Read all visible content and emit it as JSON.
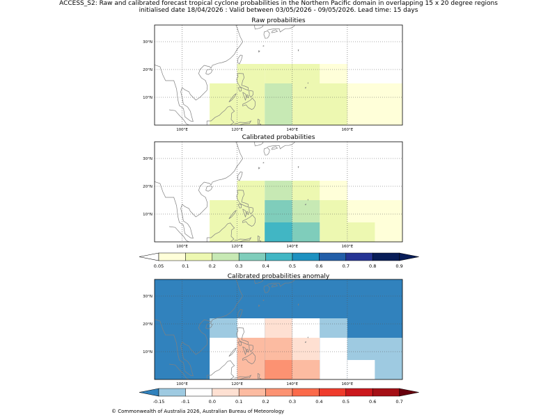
{
  "header": {
    "line1": "ACCESS_S2: Raw and calibrated forecast tropical cyclone probabilities in the Northern Pacific domain in overlapping 15 x 20 degree regions",
    "line2": "initialised date 18/04/2026 :  Valid between 03/05/2026 - 09/05/2026. Lead time: 15 days"
  },
  "footer": "© Commonwealth of Australia 2026, Australian Bureau of Meteorology",
  "axes": {
    "lon_ticks": [
      "100°E",
      "120°E",
      "140°E",
      "160°E"
    ],
    "lat_ticks": [
      "30°N",
      "20°N",
      "10°N"
    ]
  },
  "colors": {
    "prob": [
      "#ffffd9",
      "#edf8b1",
      "#c7e9b4",
      "#7fcdbb",
      "#41b6c4",
      "#1d91c0",
      "#225ea8",
      "#253494",
      "#081d58"
    ],
    "prob_under": "#ffffff",
    "prob_over": "#081d58",
    "anom": [
      "#9ecae1",
      "#ffffff",
      "#fee0d2",
      "#fcbba1",
      "#fc9272",
      "#fb6a4a",
      "#ef3b2c",
      "#cb181d",
      "#a50f15"
    ],
    "anom_under": "#3182bd",
    "anom_over": "#67000d",
    "anom_background": "#3182bd",
    "coast": "#808080",
    "grid": "#555555"
  },
  "panels": [
    {
      "id": "raw",
      "title": "Raw probabilities",
      "cells": [
        {
          "lon": [
            110,
            120
          ],
          "lat": [
            0,
            15
          ],
          "level": 1
        },
        {
          "lon": [
            120,
            130
          ],
          "lat": [
            15,
            22
          ],
          "level": 1
        },
        {
          "lon": [
            130,
            150
          ],
          "lat": [
            15,
            22
          ],
          "level": 1
        },
        {
          "lon": [
            150,
            160
          ],
          "lat": [
            15,
            22
          ],
          "level": 0
        },
        {
          "lon": [
            120,
            130
          ],
          "lat": [
            0,
            15
          ],
          "level": 1
        },
        {
          "lon": [
            130,
            140
          ],
          "lat": [
            0,
            15
          ],
          "level": 2
        },
        {
          "lon": [
            140,
            160
          ],
          "lat": [
            0,
            15
          ],
          "level": 1
        },
        {
          "lon": [
            160,
            180
          ],
          "lat": [
            0,
            15
          ],
          "level": 0
        }
      ]
    },
    {
      "id": "calibrated",
      "title": "Calibrated probabilities",
      "cells": [
        {
          "lon": [
            110,
            120
          ],
          "lat": [
            0,
            15
          ],
          "level": 1
        },
        {
          "lon": [
            120,
            130
          ],
          "lat": [
            15,
            22
          ],
          "level": 1
        },
        {
          "lon": [
            130,
            140
          ],
          "lat": [
            15,
            22
          ],
          "level": 2
        },
        {
          "lon": [
            140,
            150
          ],
          "lat": [
            15,
            22
          ],
          "level": 1
        },
        {
          "lon": [
            150,
            160
          ],
          "lat": [
            15,
            22
          ],
          "level": 0
        },
        {
          "lon": [
            120,
            130
          ],
          "lat": [
            0,
            15
          ],
          "level": 1
        },
        {
          "lon": [
            130,
            140
          ],
          "lat": [
            0,
            15
          ],
          "level": 3
        },
        {
          "lon": [
            140,
            150
          ],
          "lat": [
            7,
            15
          ],
          "level": 2
        },
        {
          "lon": [
            140,
            150
          ],
          "lat": [
            0,
            7
          ],
          "level": 3
        },
        {
          "lon": [
            150,
            160
          ],
          "lat": [
            0,
            15
          ],
          "level": 1
        },
        {
          "lon": [
            130,
            140
          ],
          "lat": [
            0,
            7
          ],
          "level": 4
        },
        {
          "lon": [
            160,
            170
          ],
          "lat": [
            0,
            15
          ],
          "level": 0
        },
        {
          "lon": [
            160,
            170
          ],
          "lat": [
            0,
            7
          ],
          "level": 1
        },
        {
          "lon": [
            170,
            180
          ],
          "lat": [
            0,
            15
          ],
          "level": 0
        }
      ]
    },
    {
      "id": "anomaly",
      "title": "Calibrated probabilities anomaly",
      "cells": [
        {
          "lon": [
            110,
            120
          ],
          "lat": [
            15,
            22
          ],
          "level": 0
        },
        {
          "lon": [
            120,
            130
          ],
          "lat": [
            15,
            22
          ],
          "level": 1
        },
        {
          "lon": [
            130,
            140
          ],
          "lat": [
            15,
            22
          ],
          "level": 2
        },
        {
          "lon": [
            140,
            150
          ],
          "lat": [
            15,
            22
          ],
          "level": 1
        },
        {
          "lon": [
            150,
            160
          ],
          "lat": [
            15,
            22
          ],
          "level": 0
        },
        {
          "lon": [
            110,
            120
          ],
          "lat": [
            0,
            15
          ],
          "level": 1
        },
        {
          "lon": [
            120,
            130
          ],
          "lat": [
            0,
            15
          ],
          "level": 3
        },
        {
          "lon": [
            130,
            140
          ],
          "lat": [
            7,
            15
          ],
          "level": 3
        },
        {
          "lon": [
            140,
            150
          ],
          "lat": [
            7,
            15
          ],
          "level": 2
        },
        {
          "lon": [
            130,
            140
          ],
          "lat": [
            0,
            7
          ],
          "level": 4
        },
        {
          "lon": [
            140,
            150
          ],
          "lat": [
            0,
            7
          ],
          "level": 3
        },
        {
          "lon": [
            150,
            160
          ],
          "lat": [
            0,
            15
          ],
          "level": 1
        },
        {
          "lon": [
            160,
            180
          ],
          "lat": [
            7,
            15
          ],
          "level": 0
        },
        {
          "lon": [
            160,
            170
          ],
          "lat": [
            0,
            7
          ],
          "level": 1
        },
        {
          "lon": [
            170,
            180
          ],
          "lat": [
            0,
            7
          ],
          "level": 0
        }
      ]
    }
  ],
  "colorbars": {
    "prob": [
      "0.05",
      "0.1",
      "0.2",
      "0.3",
      "0.4",
      "0.5",
      "0.6",
      "0.7",
      "0.8",
      "0.9"
    ],
    "anom": [
      "-0.15",
      "-0.1",
      "0.0",
      "0.1",
      "0.2",
      "0.3",
      "0.4",
      "0.5",
      "0.6",
      "0.7"
    ]
  }
}
